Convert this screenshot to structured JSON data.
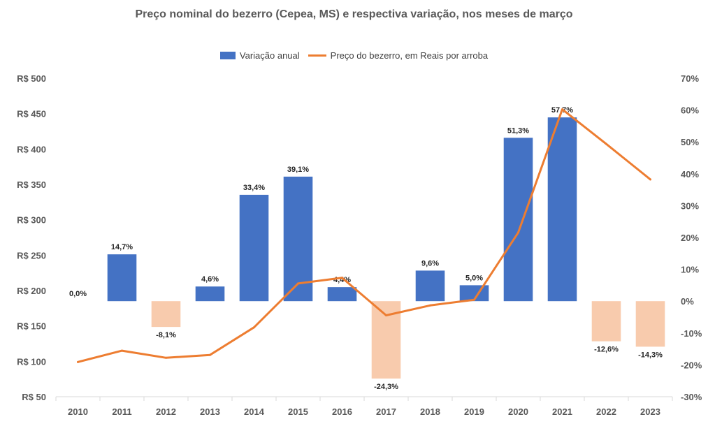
{
  "chart_data": {
    "type": "bar+line",
    "title": "Preço nominal do bezerro (Cepea, MS) e respectiva variação, nos meses de março",
    "categories": [
      "2010",
      "2011",
      "2012",
      "2013",
      "2014",
      "2015",
      "2016",
      "2017",
      "2018",
      "2019",
      "2020",
      "2021",
      "2022",
      "2023"
    ],
    "series": [
      {
        "name": "Variação anual",
        "type": "bar",
        "axis": "right",
        "values": [
          0.0,
          14.7,
          -8.1,
          4.6,
          33.4,
          39.1,
          4.4,
          -24.3,
          9.6,
          5.0,
          51.3,
          57.7,
          -12.6,
          -14.3
        ],
        "labels": [
          "0,0%",
          "14,7%",
          "-8,1%",
          "4,6%",
          "33,4%",
          "39,1%",
          "4,4%",
          "-24,3%",
          "9,6%",
          "5,0%",
          "51,3%",
          "57,7%",
          "-12,6%",
          "-14,3%"
        ]
      },
      {
        "name": "Preço do bezerro, em Reais por arroba",
        "type": "line",
        "axis": "left",
        "values": [
          99,
          115,
          105,
          109,
          148,
          210,
          218,
          165,
          179,
          187,
          282,
          456,
          407,
          357
        ]
      }
    ],
    "y_left": {
      "ticks": [
        50,
        100,
        150,
        200,
        250,
        300,
        350,
        400,
        450,
        500
      ],
      "tick_labels": [
        "R$ 50",
        "R$ 100",
        "R$ 150",
        "R$ 200",
        "R$ 250",
        "R$ 300",
        "R$ 350",
        "R$ 400",
        "R$ 450",
        "R$ 500"
      ],
      "ylim": [
        50,
        500
      ]
    },
    "y_right": {
      "ticks": [
        -30,
        -20,
        -10,
        0,
        10,
        20,
        30,
        40,
        50,
        60,
        70
      ],
      "tick_labels": [
        "-30%",
        "-20%",
        "-10%",
        "0%",
        "10%",
        "20%",
        "30%",
        "40%",
        "50%",
        "60%",
        "70%"
      ],
      "ylim": [
        -30,
        70
      ]
    },
    "legend_position": "top-center",
    "grid": false,
    "colors": {
      "bar_positive": "#4472C4",
      "bar_negative": "#F8CBAD",
      "line": "#ED7D31",
      "axis": "#D9D9D9"
    }
  }
}
